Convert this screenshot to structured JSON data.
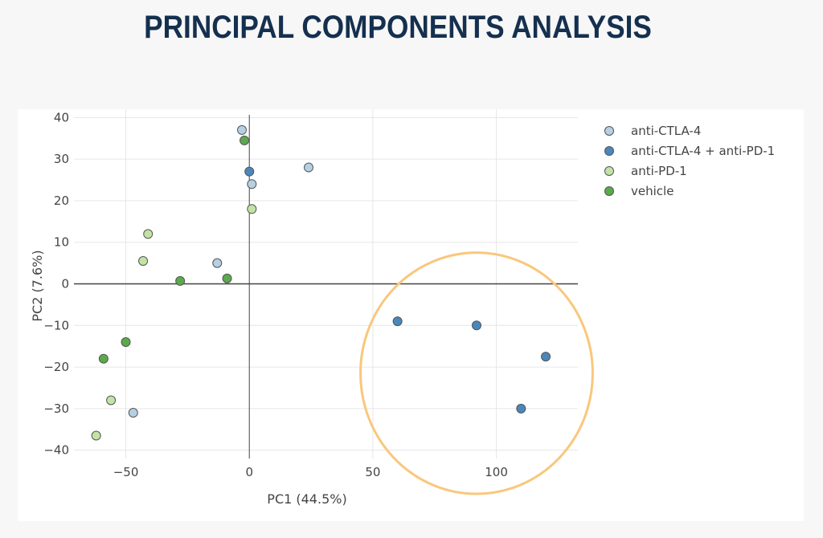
{
  "page": {
    "title": "PRINCIPAL COMPONENTS ANALYSIS"
  },
  "chart_data": {
    "type": "scatter",
    "title": "PRINCIPAL COMPONENTS ANALYSIS",
    "xlabel": "PC1 (44.5%)",
    "ylabel": "PC2 (7.6%)",
    "xlim": [
      -71,
      133
    ],
    "ylim": [
      -42,
      42
    ],
    "xticks": [
      -50,
      0,
      50,
      100
    ],
    "xtick_labels": [
      "−50",
      "0",
      "50",
      "100"
    ],
    "yticks": [
      -40,
      -30,
      -20,
      -10,
      0,
      10,
      20,
      30,
      40
    ],
    "ytick_labels": [
      "−40",
      "−30",
      "−20",
      "−10",
      "0",
      "10",
      "20",
      "30",
      "40"
    ],
    "grid": true,
    "legend_position": "top-right",
    "series": [
      {
        "name": "anti-CTLA-4",
        "color": "#b6cfe2",
        "points": [
          [
            -3,
            37
          ],
          [
            1,
            24
          ],
          [
            24,
            28
          ],
          [
            -13,
            5
          ],
          [
            -47,
            -31
          ]
        ]
      },
      {
        "name": "anti-CTLA-4 + anti-PD-1",
        "color": "#4a87bb",
        "points": [
          [
            0,
            27
          ],
          [
            60,
            -9
          ],
          [
            92,
            -10
          ],
          [
            110,
            -30
          ],
          [
            120,
            -17.5
          ]
        ]
      },
      {
        "name": "anti-PD-1",
        "color": "#c3e3a5",
        "points": [
          [
            1,
            18
          ],
          [
            -41,
            12
          ],
          [
            -43,
            5.5
          ],
          [
            -56,
            -28
          ],
          [
            -62,
            -36.5
          ]
        ]
      },
      {
        "name": "vehicle",
        "color": "#5aaa4c",
        "points": [
          [
            -2,
            34.5
          ],
          [
            -28,
            0.7
          ],
          [
            -9,
            1.3
          ],
          [
            -50,
            -14
          ],
          [
            -59,
            -18
          ]
        ]
      }
    ],
    "annotations": [
      {
        "type": "circle",
        "color": "#f9c77c",
        "cx": 92,
        "cy": -21.5,
        "rx": 47,
        "ry": 29
      }
    ]
  }
}
